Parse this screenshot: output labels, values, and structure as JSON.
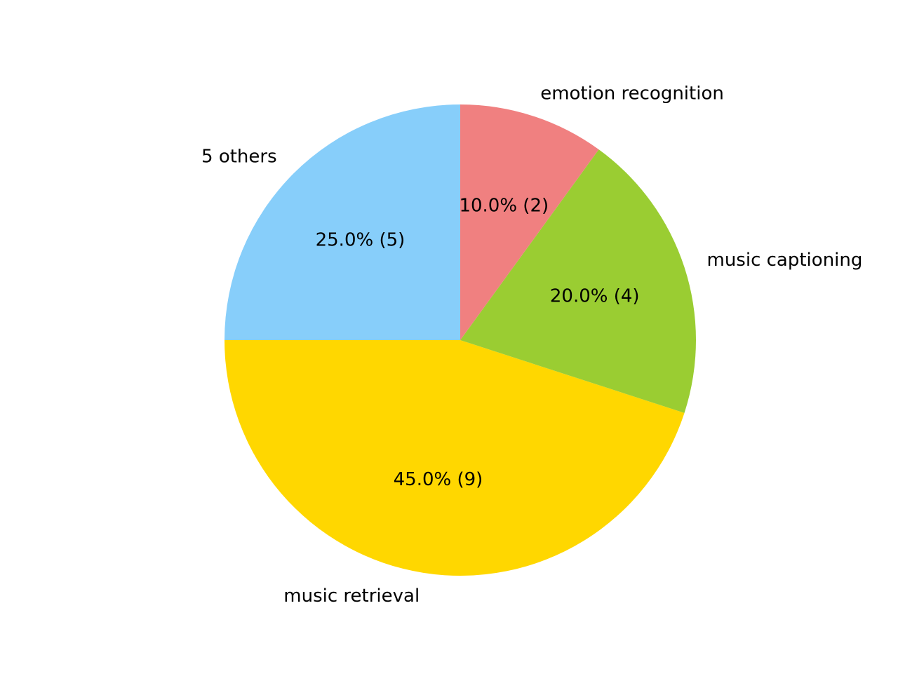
{
  "chart_data": {
    "type": "pie",
    "title": "",
    "slices": [
      {
        "label": "5 others",
        "value": 5,
        "percent_label": "25.0%  (5)",
        "color": "#87CEFA"
      },
      {
        "label": "music retrieval",
        "value": 9,
        "percent_label": "45.0%  (9)",
        "color": "#FFD700"
      },
      {
        "label": "music captioning",
        "value": 4,
        "percent_label": "20.0%  (4)",
        "color": "#9ACD32"
      },
      {
        "label": "emotion recognition",
        "value": 2,
        "percent_label": "10.0%  (2)",
        "color": "#F08080"
      }
    ],
    "start_angle_deg": 90,
    "direction": "counterclockwise"
  }
}
